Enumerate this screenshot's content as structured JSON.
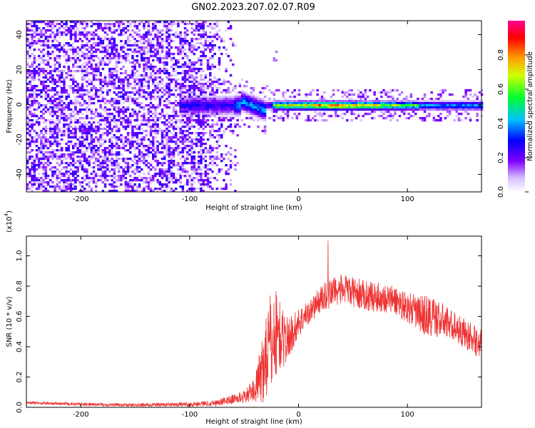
{
  "title": "GN02.2023.207.02.07.R09",
  "chart_data": [
    {
      "type": "heatmap",
      "xlabel": "Height of straight line (km)",
      "ylabel": "Frequency (Hz)",
      "xlim": [
        -250,
        168
      ],
      "ylim": [
        -50,
        48
      ],
      "xticks": [
        "-200",
        "-100",
        "0",
        "100"
      ],
      "yticks": [
        "-40",
        "-20",
        "0",
        "20",
        "40"
      ],
      "colorbar": {
        "label": "Normalized spectral amplitude",
        "range": [
          0.0,
          1.0
        ],
        "ticks": [
          "0.0",
          "0.2",
          "0.4",
          "0.6",
          "0.8"
        ],
        "colors": [
          "#ffffff",
          "#a060ff",
          "#3010ff",
          "#00c8ff",
          "#00ff40",
          "#ffff00",
          "#ff8000",
          "#ff0000",
          "#ff0080"
        ]
      },
      "features": {
        "broadband_noise_x_range": [
          -250,
          -70
        ],
        "tone_frequency_hz": 0,
        "tone_start_x": -110,
        "peak_x_range": [
          -25,
          110
        ]
      }
    },
    {
      "type": "line",
      "xlabel": "Height of straight line (km)",
      "ylabel": "SNR (10 * v/v)",
      "multiplier_label": "(x10",
      "multiplier_exponent": "4",
      "xlim": [
        -250,
        168
      ],
      "ylim": [
        0,
        1.13
      ],
      "xticks": [
        "-200",
        "-100",
        "0",
        "100"
      ],
      "yticks": [
        "0.0",
        "0.2",
        "0.4",
        "0.6",
        "0.8",
        "1.0"
      ],
      "line_color": "#ee3333",
      "envelope": {
        "x": [
          -250,
          -200,
          -150,
          -100,
          -75,
          -50,
          -40,
          -35,
          -30,
          -25,
          -20,
          -15,
          -10,
          -5,
          0,
          10,
          20,
          30,
          40,
          50,
          60,
          70,
          80,
          90,
          100,
          110,
          120,
          130,
          140,
          150,
          160,
          168
        ],
        "mean": [
          0.03,
          0.02,
          0.015,
          0.02,
          0.03,
          0.07,
          0.12,
          0.2,
          0.35,
          0.42,
          0.5,
          0.45,
          0.45,
          0.5,
          0.56,
          0.63,
          0.71,
          0.76,
          0.78,
          0.76,
          0.74,
          0.73,
          0.72,
          0.7,
          0.66,
          0.62,
          0.6,
          0.58,
          0.55,
          0.5,
          0.45,
          0.42
        ],
        "spread": [
          0.01,
          0.01,
          0.01,
          0.015,
          0.02,
          0.04,
          0.08,
          0.2,
          0.3,
          0.35,
          0.3,
          0.2,
          0.15,
          0.12,
          0.1,
          0.08,
          0.09,
          0.1,
          0.1,
          0.1,
          0.1,
          0.1,
          0.1,
          0.1,
          0.1,
          0.12,
          0.15,
          0.12,
          0.1,
          0.1,
          0.1,
          0.1
        ]
      }
    }
  ]
}
